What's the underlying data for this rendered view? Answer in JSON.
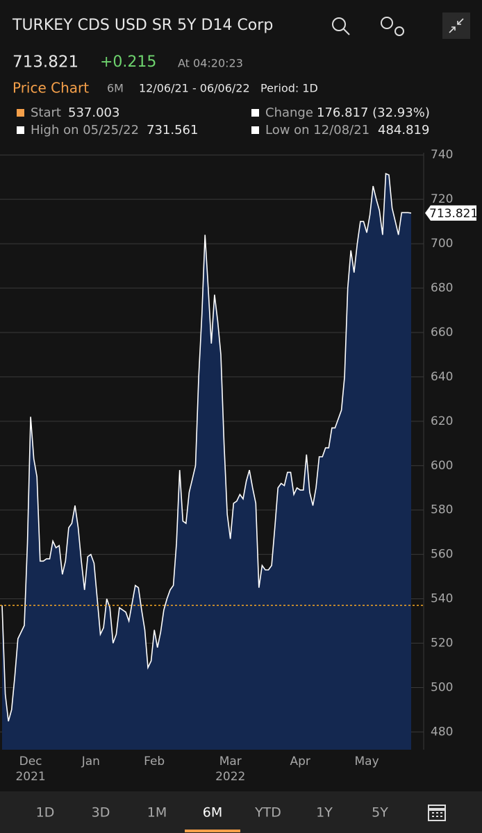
{
  "header": {
    "title": "TURKEY CDS USD SR 5Y D14 Corp",
    "price": "713.821",
    "change": "+0.215",
    "time": "At 04:20:23"
  },
  "subheader": {
    "label": "Price Chart",
    "range": "6M",
    "dates": "12/06/21 - 06/06/22",
    "period": "Period: 1D"
  },
  "stats": {
    "start_label": "Start",
    "start_value": "537.003",
    "change_label": "Change",
    "change_value": "176.817 (32.93%)",
    "high_label": "High on 05/25/22",
    "high_value": "731.561",
    "low_label": "Low on 12/08/21",
    "low_value": "484.819"
  },
  "tabs": [
    "1D",
    "3D",
    "1M",
    "6M",
    "YTD",
    "1Y",
    "5Y"
  ],
  "selected_tab_index": 3,
  "chart_data": {
    "type": "area",
    "categories": [
      null,
      null,
      null,
      null,
      null,
      null,
      null,
      null,
      null,
      "Dec",
      null,
      null,
      null,
      null,
      null,
      null,
      null,
      null,
      null,
      null,
      null,
      null,
      null,
      null,
      null,
      null,
      null,
      null,
      "Jan",
      null,
      null,
      null,
      null,
      null,
      null,
      null,
      null,
      null,
      null,
      null,
      null,
      null,
      null,
      null,
      null,
      null,
      null,
      null,
      "Feb",
      null,
      null,
      null,
      null,
      null,
      null,
      null,
      null,
      null,
      null,
      null,
      null,
      null,
      null,
      null,
      null,
      null,
      null,
      null,
      null,
      null,
      null,
      null,
      "Mar",
      null,
      null,
      null,
      null,
      null,
      null,
      null,
      null,
      null,
      null,
      null,
      null,
      null,
      null,
      null,
      null,
      null,
      null,
      null,
      null,
      null,
      "Apr",
      null,
      null,
      null,
      null,
      null,
      null,
      null,
      null,
      null,
      null,
      null,
      null,
      null,
      null,
      null,
      null,
      null,
      null,
      null,
      null,
      "May",
      null,
      null,
      null,
      null,
      null,
      null,
      null,
      null,
      null,
      null,
      null,
      null,
      null,
      null
    ],
    "year_labels": [
      null,
      null,
      null,
      null,
      null,
      null,
      null,
      null,
      null,
      "2021",
      null,
      null,
      null,
      null,
      null,
      null,
      null,
      null,
      null,
      null,
      null,
      null,
      null,
      null,
      null,
      null,
      null,
      null,
      null,
      null,
      null,
      null,
      null,
      null,
      null,
      null,
      null,
      null,
      null,
      null,
      null,
      null,
      null,
      null,
      null,
      null,
      null,
      null,
      null,
      null,
      null,
      null,
      null,
      null,
      null,
      null,
      null,
      null,
      null,
      null,
      null,
      null,
      null,
      null,
      null,
      null,
      null,
      null,
      null,
      null,
      null,
      null,
      "2022",
      null,
      null,
      null,
      null,
      null,
      null,
      null,
      null,
      null,
      null,
      null,
      null,
      null,
      null,
      null,
      null,
      null,
      null,
      null,
      null,
      null,
      null,
      null,
      null,
      null,
      null,
      null,
      null,
      null,
      null,
      null,
      null,
      null,
      null,
      null,
      null,
      null,
      null,
      null,
      null,
      null,
      null,
      null,
      null,
      null,
      null,
      null,
      null,
      null,
      null,
      null,
      null,
      null,
      null,
      null,
      null,
      null
    ],
    "series": [
      {
        "color": "#ffffff",
        "fill": "#142850",
        "values": [
          537,
          497,
          484.819,
          490,
          505,
          522,
          525,
          528,
          565,
          622,
          603,
          595,
          557,
          557,
          558,
          558,
          566,
          563,
          564,
          551,
          557,
          572,
          574,
          582,
          572,
          557,
          544,
          559,
          560,
          556,
          540,
          524,
          527,
          540,
          536,
          520,
          524,
          536,
          535,
          534,
          530,
          538,
          546,
          545,
          535,
          526,
          509,
          512,
          526,
          518,
          525,
          535,
          540,
          544,
          546,
          565,
          598,
          575,
          574,
          588,
          594,
          600,
          640,
          668,
          704,
          680,
          655,
          677,
          665,
          650,
          610,
          578,
          567,
          583,
          584,
          587,
          585,
          593,
          598,
          590,
          583,
          545,
          555,
          553,
          553,
          555,
          572,
          590,
          592,
          591,
          597,
          597,
          587,
          590,
          589,
          589,
          605,
          588,
          582,
          590,
          604,
          604,
          608,
          608,
          617,
          617,
          621,
          625,
          640,
          680,
          697,
          687,
          700,
          710,
          710,
          705,
          713,
          726,
          720,
          715,
          704,
          731.561,
          731,
          716,
          710,
          704,
          714,
          714,
          714,
          713.821
        ]
      }
    ],
    "reference_line": {
      "value": 537.003,
      "color": "#f5a623"
    },
    "ylim": [
      472,
      741
    ],
    "yticks": [
      480,
      500,
      520,
      540,
      560,
      580,
      600,
      620,
      640,
      660,
      680,
      700,
      720,
      740
    ],
    "grid": true
  }
}
